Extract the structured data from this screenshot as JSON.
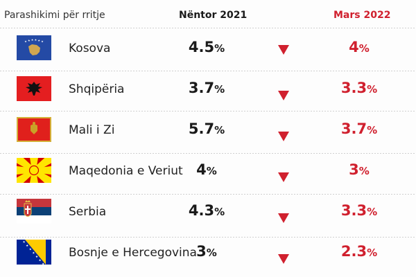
{
  "header": {
    "label": "Parashikimi për rritje",
    "col_nov": "Nëntor 2021",
    "col_mar": "Mars 2022"
  },
  "rows": [
    {
      "country": "Kosova",
      "flag": "kosovo-flag",
      "nov": "4.5",
      "mar": "4"
    },
    {
      "country": "Shqipëria",
      "flag": "albania-flag",
      "nov": "3.7",
      "mar": "3.3"
    },
    {
      "country": "Mali i Zi",
      "flag": "montenegro-flag",
      "nov": "5.7",
      "mar": "3.7"
    },
    {
      "country": "Maqedonia e Veriut",
      "flag": "north-macedonia-flag",
      "nov": "4",
      "mar": "3"
    },
    {
      "country": "Serbia",
      "flag": "serbia-flag",
      "nov": "4.3",
      "mar": "3.3"
    },
    {
      "country": "Bosnje e Hercegovina",
      "flag": "bosnia-flag",
      "nov": "3",
      "mar": "2.3"
    }
  ],
  "unit": "%",
  "arrow_icon": "down-triangle-icon",
  "colors": {
    "accent_red": "#d0202e",
    "text_dark": "#1a1a1a"
  },
  "chart_data": {
    "type": "table",
    "columns": [
      "Parashikimi për rritje",
      "Nëntor 2021",
      "Mars 2022"
    ],
    "categories": [
      "Kosova",
      "Shqipëria",
      "Mali i Zi",
      "Maqedonia e Veriut",
      "Serbia",
      "Bosnje e Hercegovina"
    ],
    "series": [
      {
        "name": "Nëntor 2021",
        "values": [
          4.5,
          3.7,
          5.7,
          4,
          4.3,
          3
        ]
      },
      {
        "name": "Mars 2022",
        "values": [
          4,
          3.3,
          3.7,
          3,
          3.3,
          2.3
        ]
      }
    ]
  }
}
